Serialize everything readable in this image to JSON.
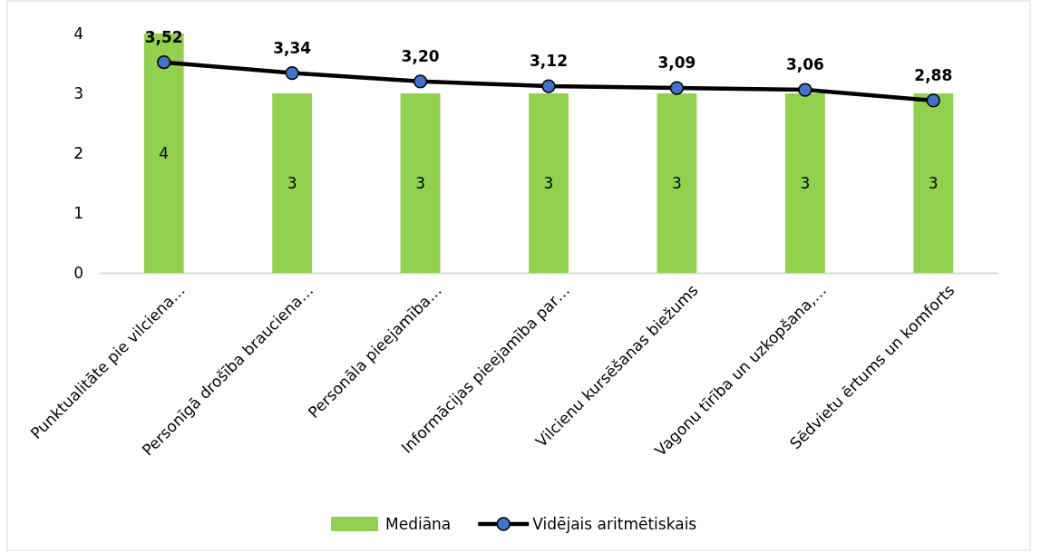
{
  "chart_data": {
    "type": "bar",
    "categories": [
      "Punktualitāte pie vilciena…",
      "Personīgā drošība brauciena…",
      "Personāla pieejamība…",
      "Informācijas pieejamība par…",
      "Vilcienu kursēšanas biežums",
      "Vagonu tīrība un uzkopšana,…",
      "Sēdvietu ērtums un komforts"
    ],
    "series": [
      {
        "name": "Mediāna",
        "color": "#92d050",
        "values": [
          4,
          3,
          3,
          3,
          3,
          3,
          3
        ],
        "value_labels": [
          "4",
          "3",
          "3",
          "3",
          "3",
          "3",
          "3"
        ]
      },
      {
        "name": "Vidējais aritmētiskais",
        "type": "line",
        "color": "#000000",
        "values": [
          3.52,
          3.34,
          3.2,
          3.12,
          3.09,
          3.06,
          2.88
        ],
        "value_labels": [
          "3,52",
          "3,34",
          "3,20",
          "3,12",
          "3,09",
          "3,06",
          "2,88"
        ]
      }
    ],
    "ylim": [
      0,
      4
    ],
    "yticks": [
      0,
      1,
      2,
      3,
      4
    ],
    "grid": false,
    "legend": "bottom",
    "marker": "circle",
    "line_style": "solid"
  }
}
